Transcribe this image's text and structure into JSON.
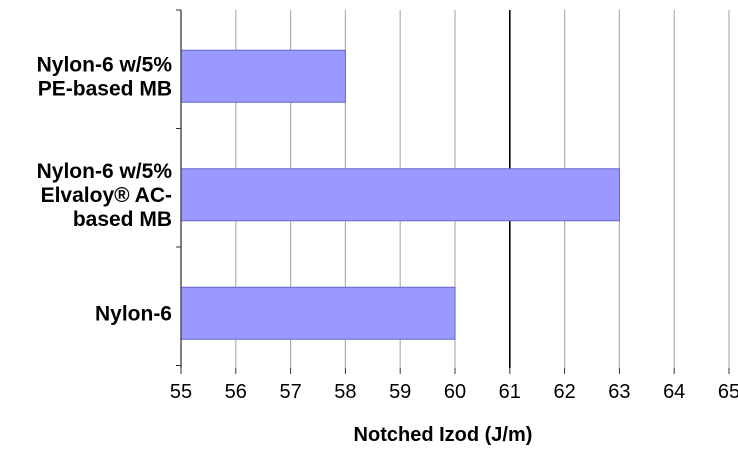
{
  "chart_data": {
    "type": "bar",
    "orientation": "horizontal",
    "categories": [
      [
        "Nylon-6 w/5%",
        "PE-based MB"
      ],
      [
        "Nylon-6 w/5%",
        "Elvaloy® AC-",
        "based MB"
      ],
      [
        "Nylon-6"
      ]
    ],
    "values": [
      58,
      63,
      60
    ],
    "xlabel": "Notched Izod (J/m)",
    "ylabel": "",
    "xlim": [
      55,
      65
    ],
    "xticks": [
      "55",
      "56",
      "57",
      "58",
      "59",
      "60",
      "61",
      "62",
      "63",
      "64",
      "65"
    ],
    "grid": "vertical",
    "bar_color": "#9999ff",
    "bar_edge_color": "#6666cc",
    "grid_color": "#b0b0b0",
    "highlight_gridline_value": 61,
    "highlight_gridline_color": "#000000"
  }
}
